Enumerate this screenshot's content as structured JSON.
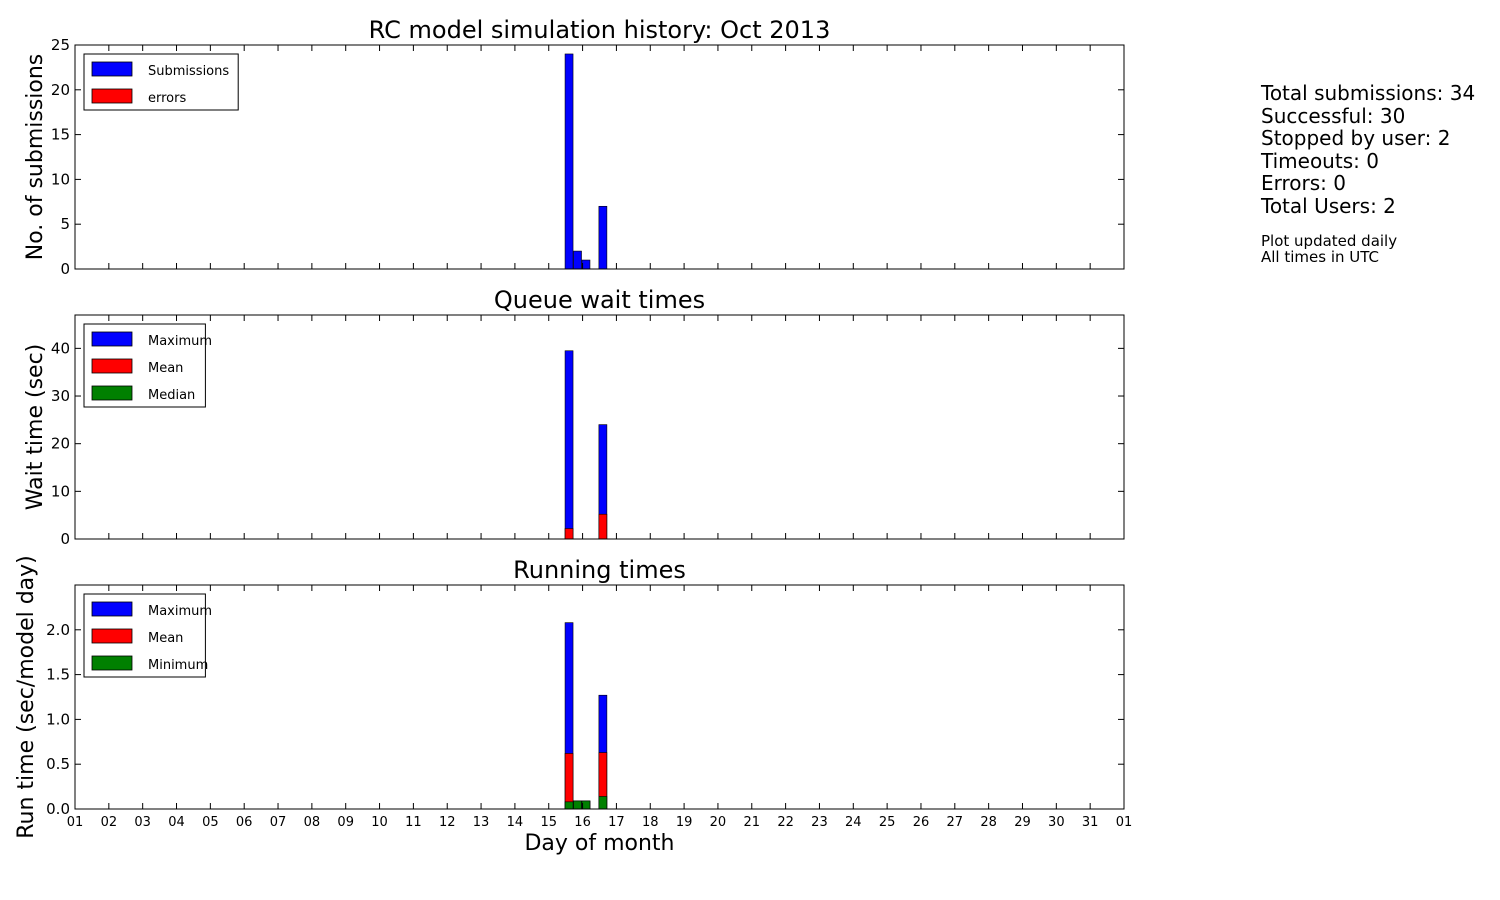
{
  "chart_data": [
    {
      "type": "bar",
      "title": "RC model simulation history: Oct 2013",
      "ylabel": "No. of submissions",
      "ylim": [
        0,
        25
      ],
      "yticks": [
        0,
        5,
        10,
        15,
        20,
        25
      ],
      "ytick_labels": [
        "0",
        "5",
        "10",
        "15",
        "20",
        "25"
      ],
      "xlim": [
        1,
        32
      ],
      "legend": "top-left",
      "series": [
        {
          "name": "Submissions",
          "color": "#0000ff",
          "x": [
            15.6,
            15.85,
            16.1,
            16.6
          ],
          "values": [
            24,
            2,
            1,
            7
          ]
        },
        {
          "name": "errors",
          "color": "#ff0000",
          "x": [],
          "values": []
        }
      ]
    },
    {
      "type": "bar",
      "title": "Queue wait times",
      "ylabel": "Wait time (sec)",
      "ylim": [
        0,
        47
      ],
      "yticks": [
        0,
        10,
        20,
        30,
        40
      ],
      "ytick_labels": [
        "0",
        "10",
        "20",
        "30",
        "40"
      ],
      "xlim": [
        1,
        32
      ],
      "legend": "top-left",
      "series": [
        {
          "name": "Maximum",
          "color": "#0000ff",
          "x": [
            15.6,
            16.6
          ],
          "values": [
            39.5,
            24
          ]
        },
        {
          "name": "Mean",
          "color": "#ff0000",
          "x": [
            15.6,
            16.6
          ],
          "values": [
            2.2,
            5.2
          ]
        },
        {
          "name": "Median",
          "color": "#008000",
          "x": [],
          "values": []
        }
      ]
    },
    {
      "type": "bar",
      "title": "Running times",
      "ylabel": "Run time (sec/model day)",
      "xlabel": "Day of month",
      "ylim": [
        0,
        2.5
      ],
      "yticks": [
        0,
        0.5,
        1.0,
        1.5,
        2.0
      ],
      "ytick_labels": [
        "0.0",
        "0.5",
        "1.0",
        "1.5",
        "2.0"
      ],
      "xlim": [
        1,
        32
      ],
      "xticks": [
        1,
        2,
        3,
        4,
        5,
        6,
        7,
        8,
        9,
        10,
        11,
        12,
        13,
        14,
        15,
        16,
        17,
        18,
        19,
        20,
        21,
        22,
        23,
        24,
        25,
        26,
        27,
        28,
        29,
        30,
        31,
        32
      ],
      "xtick_labels": [
        "01",
        "02",
        "03",
        "04",
        "05",
        "06",
        "07",
        "08",
        "09",
        "10",
        "11",
        "12",
        "13",
        "14",
        "15",
        "16",
        "17",
        "18",
        "19",
        "20",
        "21",
        "22",
        "23",
        "24",
        "25",
        "26",
        "27",
        "28",
        "29",
        "30",
        "31",
        "01"
      ],
      "legend": "top-left",
      "series": [
        {
          "name": "Maximum",
          "color": "#0000ff",
          "x": [
            15.6,
            15.85,
            16.1,
            16.6
          ],
          "values": [
            2.08,
            0.09,
            0.09,
            1.27
          ]
        },
        {
          "name": "Mean",
          "color": "#ff0000",
          "x": [
            15.6,
            15.85,
            16.1,
            16.6
          ],
          "values": [
            0.62,
            0.09,
            0.09,
            0.63
          ]
        },
        {
          "name": "Minimum",
          "color": "#008000",
          "x": [
            15.6,
            15.85,
            16.1,
            16.6
          ],
          "values": [
            0.08,
            0.09,
            0.09,
            0.14
          ]
        }
      ]
    }
  ],
  "stats": {
    "total_submissions": "Total submissions: 34",
    "successful": "Successful: 30",
    "stopped_by_user": "Stopped by user: 2",
    "timeouts": "Timeouts: 0",
    "errors": "Errors: 0",
    "total_users": "Total Users: 2"
  },
  "notes": {
    "updated": "Plot updated daily",
    "timezone": "All times in UTC"
  }
}
